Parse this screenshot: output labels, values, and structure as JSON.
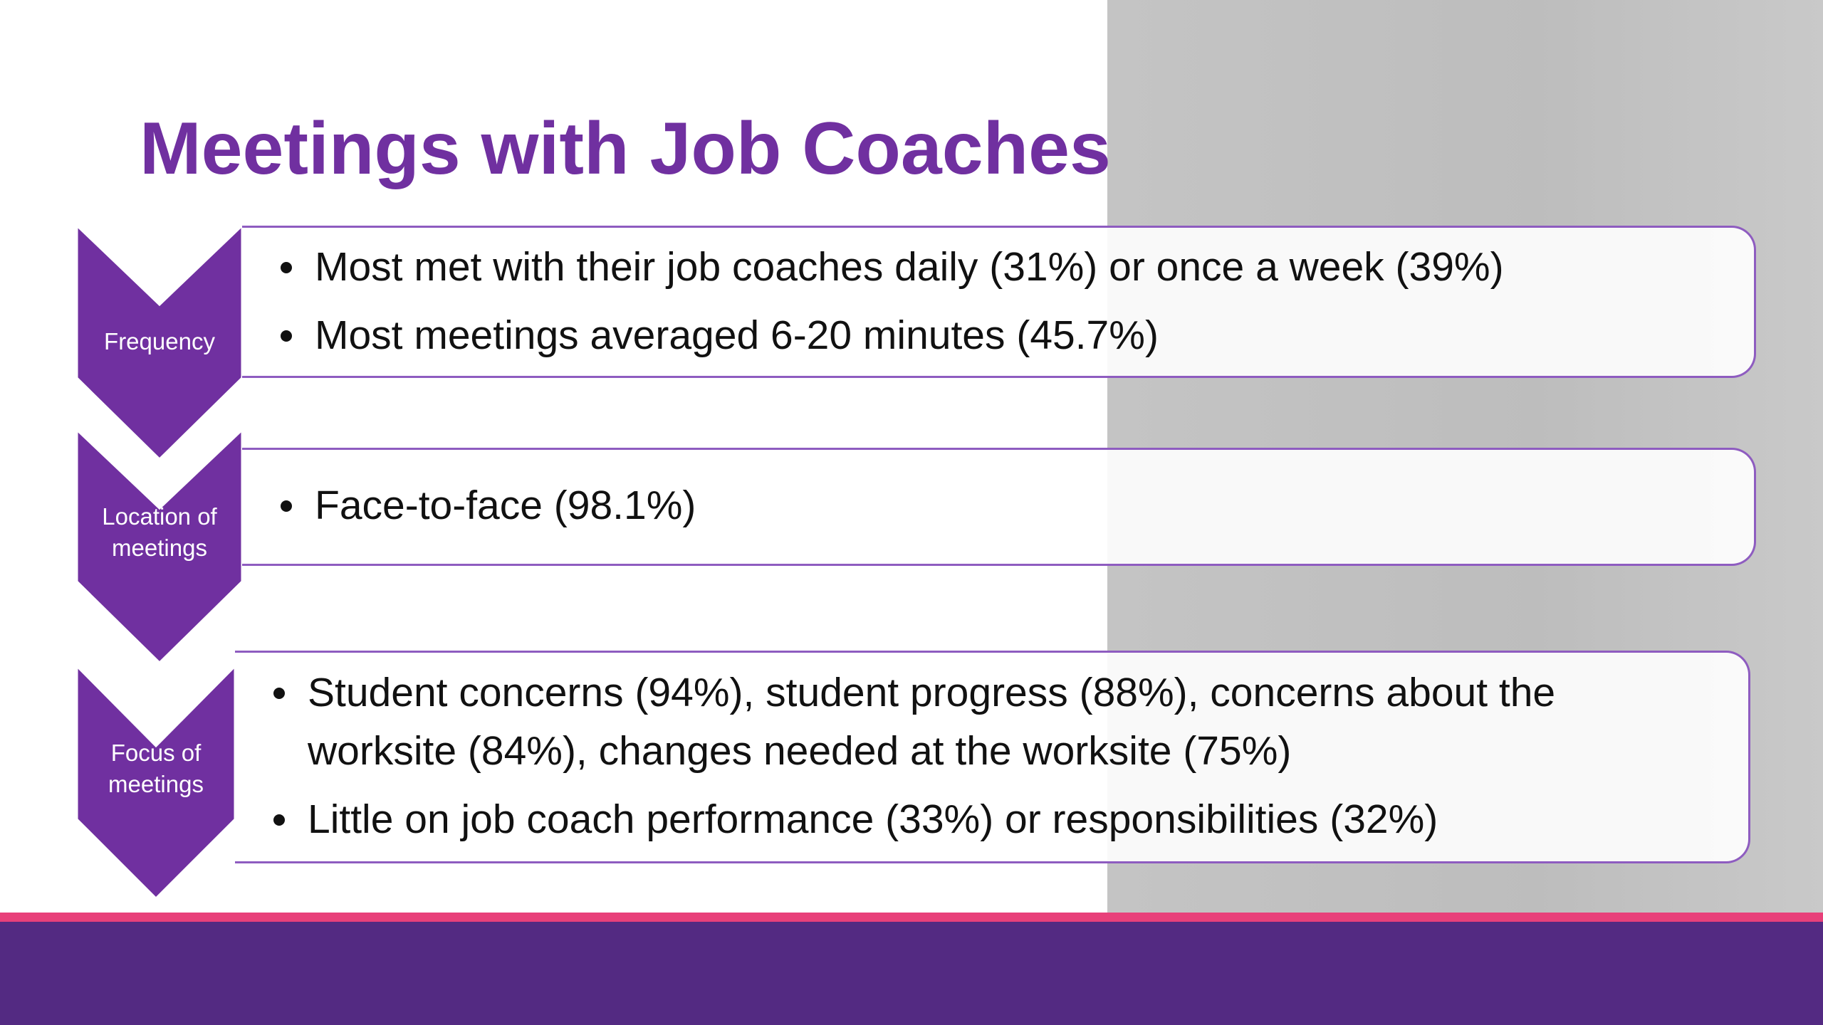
{
  "title": "Meetings with Job Coaches",
  "rows": [
    {
      "label": "Frequency",
      "bullets": [
        "Most met with their job coaches daily (31%) or once a week (39%)",
        "Most meetings averaged 6-20 minutes (45.7%)"
      ]
    },
    {
      "label": "Location of meetings",
      "bullets": [
        "Face-to-face (98.1%)"
      ]
    },
    {
      "label": "Focus of meetings",
      "bullets": [
        "Student concerns (94%), student progress (88%), concerns about the worksite (84%), changes needed at the worksite (75%)",
        "Little on job coach performance (33%) or responsibilities (32%)"
      ]
    }
  ]
}
